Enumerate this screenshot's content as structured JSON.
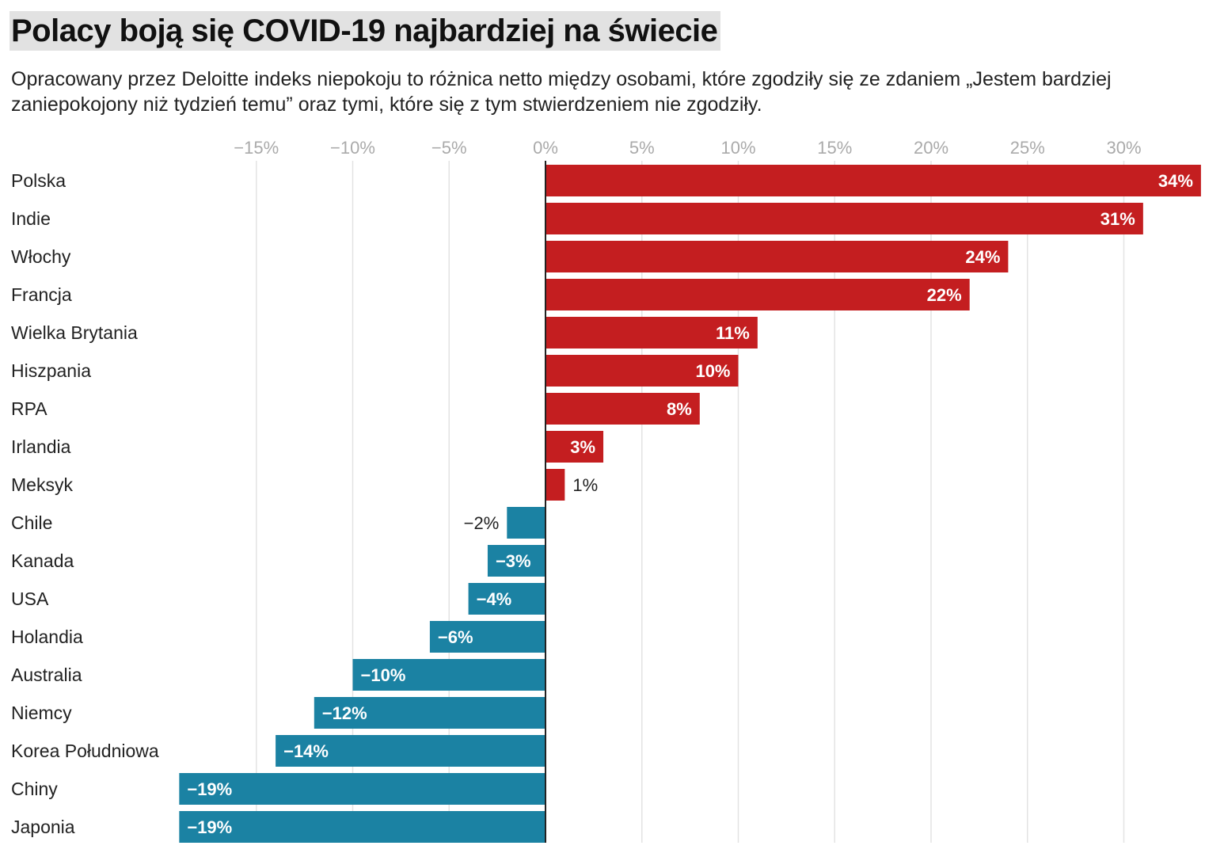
{
  "chart_data": {
    "type": "bar",
    "orientation": "horizontal",
    "title": "Polacy boją się COVID-19 najbardziej na świecie",
    "subtitle": "Opracowany przez Deloitte indeks niepokoju to różnica netto między osobami, które zgodziły się ze zdaniem „Jestem bardziej zaniepokojony niż tydzień temu” oraz tymi, które się z tym stwierdzeniem nie zgodziły.",
    "categories": [
      "Polska",
      "Indie",
      "Włochy",
      "Francja",
      "Wielka Brytania",
      "Hiszpania",
      "RPA",
      "Irlandia",
      "Meksyk",
      "Chile",
      "Kanada",
      "USA",
      "Holandia",
      "Australia",
      "Niemcy",
      "Korea Południowa",
      "Chiny",
      "Japonia"
    ],
    "values": [
      34,
      31,
      24,
      22,
      11,
      10,
      8,
      3,
      1,
      -2,
      -3,
      -4,
      -6,
      -10,
      -12,
      -14,
      -19,
      -19
    ],
    "value_labels": [
      "34%",
      "31%",
      "24%",
      "22%",
      "11%",
      "10%",
      "8%",
      "3%",
      "1%",
      "−2%",
      "−3%",
      "−4%",
      "−6%",
      "−10%",
      "−12%",
      "−14%",
      "−19%",
      "−19%"
    ],
    "xlim": [
      -19,
      34
    ],
    "ticks": [
      -15,
      -10,
      -5,
      0,
      5,
      10,
      15,
      20,
      25,
      30
    ],
    "tick_labels": [
      "−15%",
      "−10%",
      "−5%",
      "0%",
      "5%",
      "10%",
      "15%",
      "20%",
      "25%",
      "30%"
    ],
    "colors": {
      "positive": "#c41e20",
      "negative": "#1b82a3",
      "grid": "#e3e3e3",
      "axis": "#222222"
    }
  }
}
